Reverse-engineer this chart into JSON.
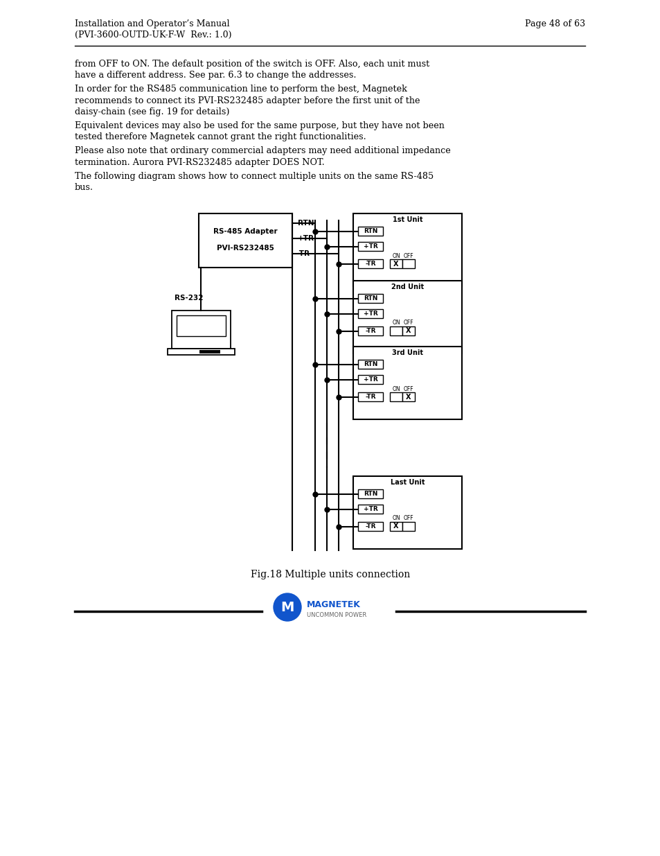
{
  "page_header_left1": "Installation and Operator’s Manual",
  "page_header_left2": "(PVI-3600-OUTD-UK-F-W  Rev.: 1.0)",
  "page_header_right": "Page 48 of 63",
  "body_text_lines": [
    [
      "from OFF to ON. The default position of the switch is OFF. Also, each unit must",
      false
    ],
    [
      "have a different address. See par. 6.3 to change the addresses.",
      false
    ],
    [
      "In order for the RS485 communication line to perform the best, Magnetek",
      true
    ],
    [
      "recommends to connect its PVI-RS232485 adapter before the first unit of the",
      false
    ],
    [
      "daisy-chain (see fig. 19 for details)",
      false
    ],
    [
      "Equivalent devices may also be used for the same purpose, but they have not been",
      true
    ],
    [
      "tested therefore Magnetek cannot grant the right functionalities.",
      false
    ],
    [
      "Please also note that ordinary commercial adapters may need additional impedance",
      true
    ],
    [
      "termination. Aurora PVI-RS232485 adapter DOES NOT.",
      false
    ],
    [
      "The following diagram shows how to connect multiple units on the same RS-485",
      true
    ],
    [
      "bus.",
      false
    ]
  ],
  "caption": "Fig.18 Multiple units connection",
  "bg_color": "#ffffff",
  "unit_labels": [
    "1st Unit",
    "2nd Unit",
    "3rd Unit",
    "Last Unit"
  ],
  "adapter_label1": "RS-485 Adapter",
  "adapter_label2": "PVI-RS232485",
  "rs232_label": "RS-232",
  "bus_labels": [
    "RTN",
    "+TR",
    "-TR"
  ],
  "magnetek_text": "MAGNETEK",
  "uncommon_text": "UNCOMMON POWER"
}
